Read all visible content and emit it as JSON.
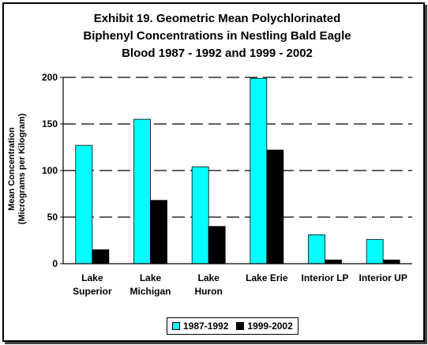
{
  "chart_data": {
    "type": "bar",
    "title_lines": [
      "Exhibit 19.  Geometric Mean Polychlorinated",
      "Biphenyl Concentrations in Nestling Bald Eagle",
      "Blood 1987 - 1992 and 1999 - 2002"
    ],
    "ylabel_lines": [
      "Mean Concentration",
      "(Micrograms per Kilogram)"
    ],
    "xlabel": "",
    "categories": [
      [
        "Lake",
        "Superior"
      ],
      [
        "Lake",
        "Michigan"
      ],
      [
        "Lake",
        "Huron"
      ],
      [
        "Lake Erie"
      ],
      [
        "Interior LP"
      ],
      [
        "Interior UP"
      ]
    ],
    "series": [
      {
        "name": "1987-1992",
        "color": "#00ffff",
        "values": [
          127,
          155,
          104,
          199,
          31,
          26
        ]
      },
      {
        "name": "1999-2002",
        "color": "#000000",
        "values": [
          15,
          68,
          40,
          122,
          4,
          4
        ]
      }
    ],
    "ylim": [
      0,
      200
    ],
    "yticks": [
      0,
      50,
      100,
      150,
      200
    ],
    "grid": "dashed horizontal",
    "legend_position": "bottom"
  }
}
